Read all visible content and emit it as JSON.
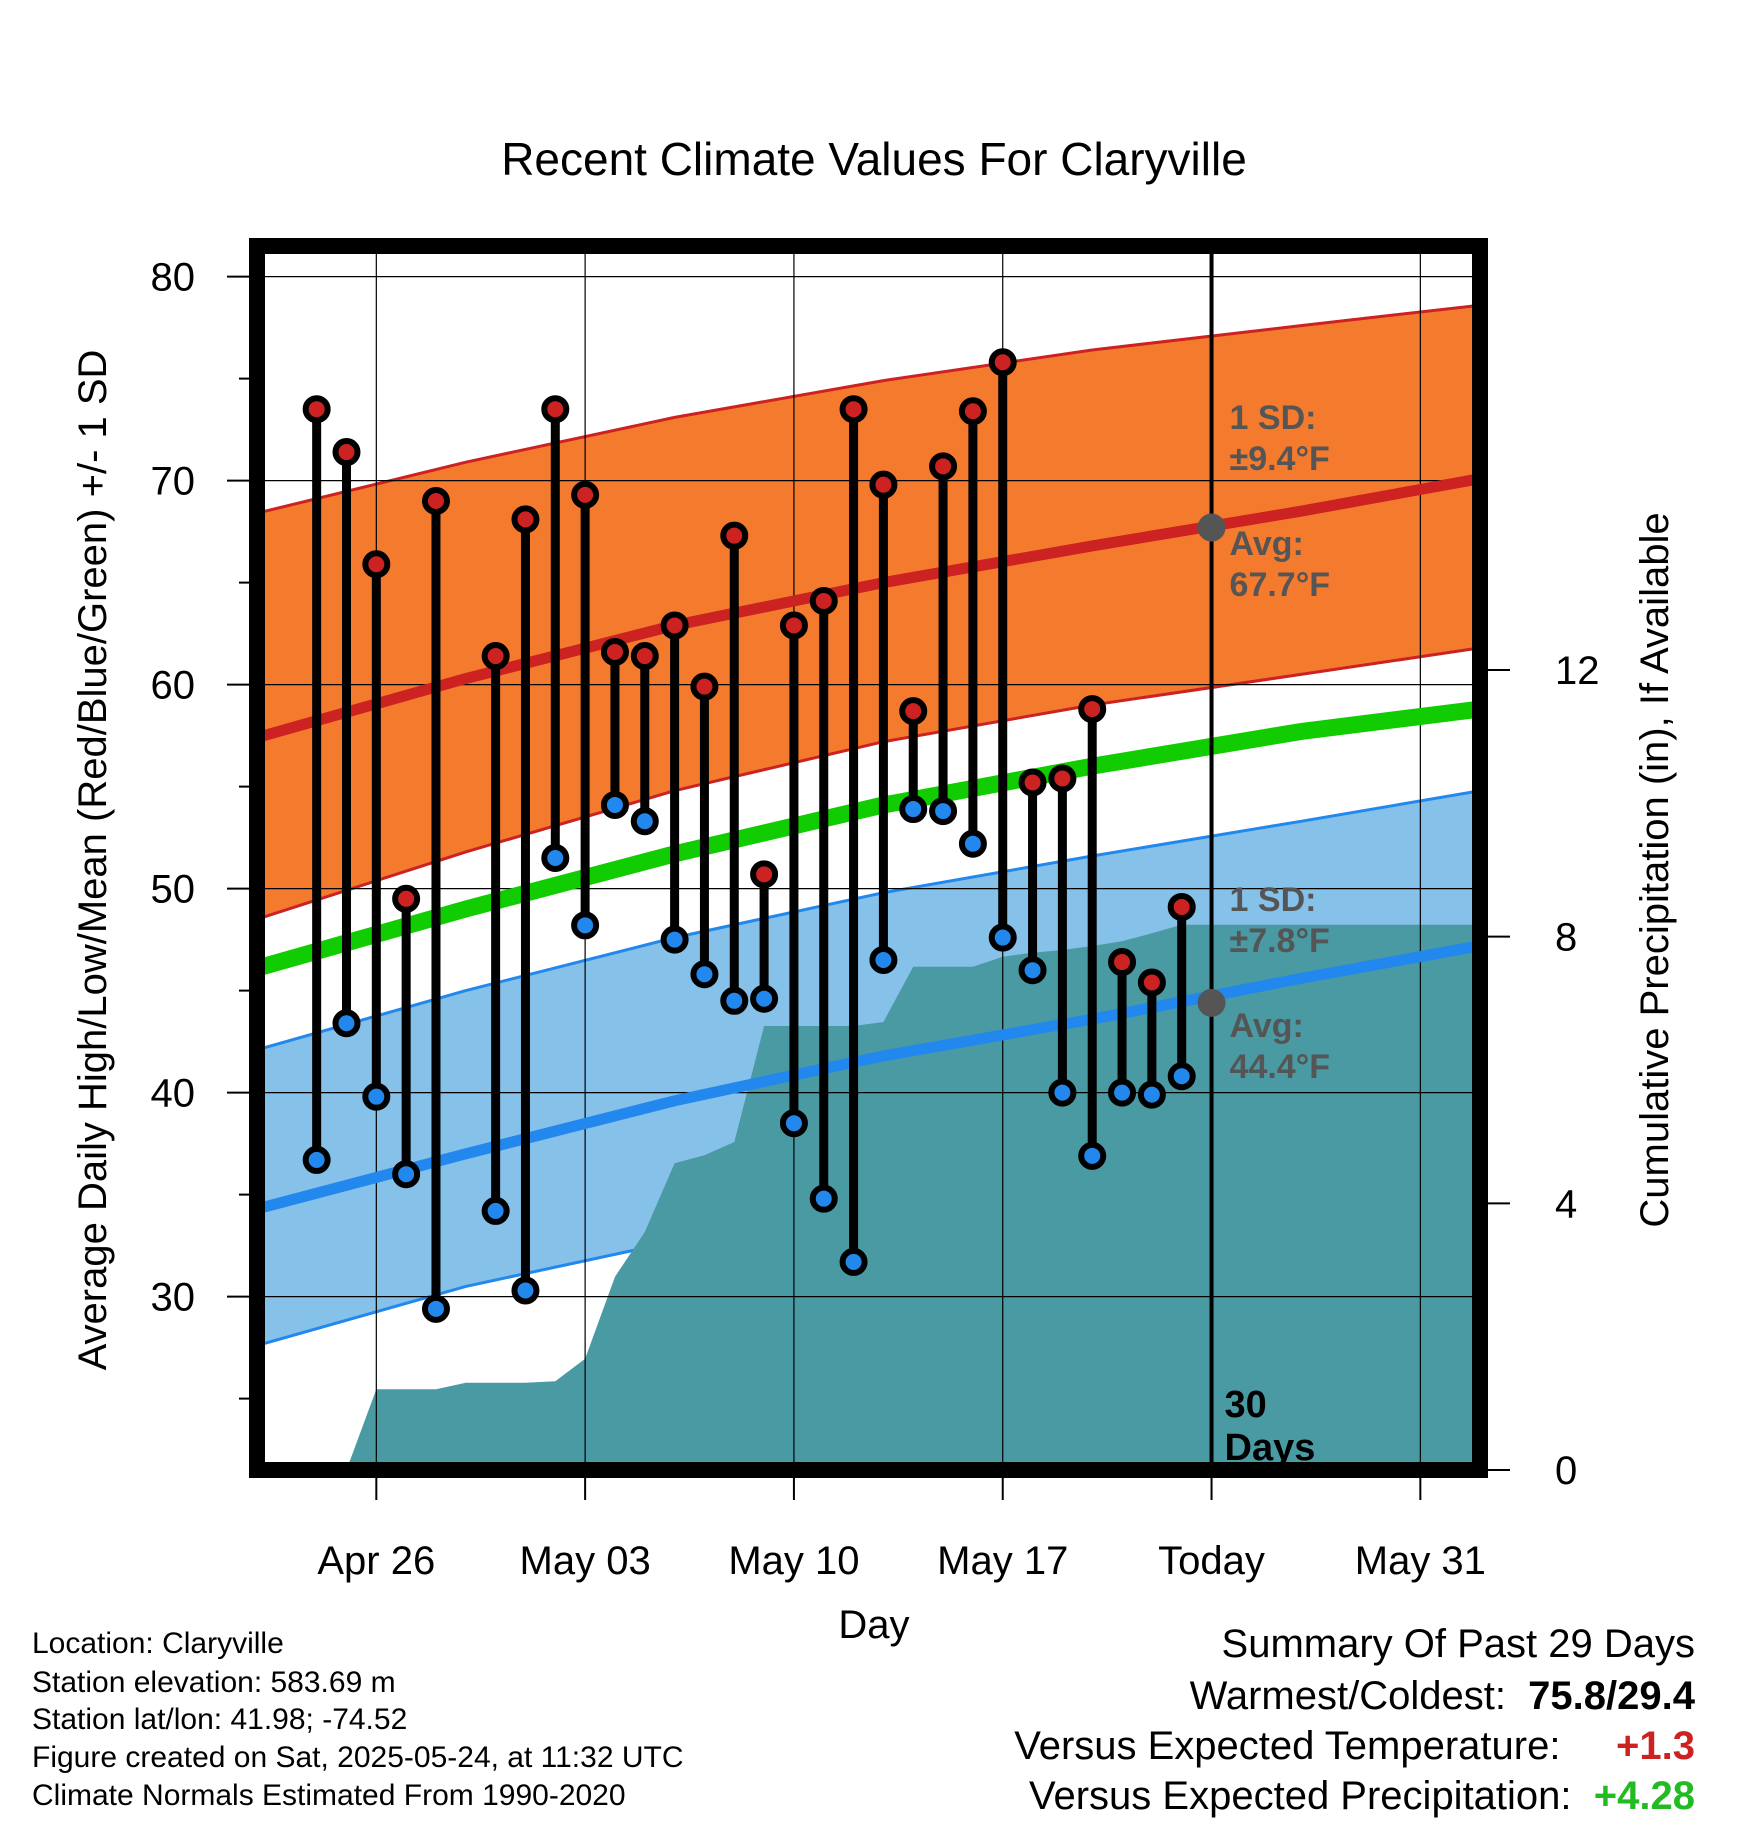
{
  "chart_data": {
    "type": "line",
    "title": "Recent Climate Values For Claryville",
    "xlabel": "Day",
    "ylabel": "Average Daily High/Low/Mean (Red/Blue/Green) +/- 1 SD",
    "y2label": "Cumulative Precipitation (in), If Available",
    "x_tick_labels": [
      "Apr 26",
      "May 03",
      "May 10",
      "May 17",
      "Today",
      "May 31"
    ],
    "x_tick_dates": [
      "2025-04-26",
      "2025-05-03",
      "2025-05-10",
      "2025-05-17",
      "2025-05-24",
      "2025-05-31"
    ],
    "xlim": [
      "2025-04-22",
      "2025-06-02"
    ],
    "ylim": [
      21.5,
      81.5
    ],
    "y_ticks": [
      30,
      40,
      50,
      60,
      70,
      80
    ],
    "y2lim": [
      0,
      18.36
    ],
    "y2_ticks": [
      0,
      4,
      8,
      12
    ],
    "today_label": "30\nDays",
    "today_date": "2025-05-24",
    "normals": {
      "dates": [
        "2025-04-22",
        "2025-04-29",
        "2025-05-06",
        "2025-05-13",
        "2025-05-20",
        "2025-05-27",
        "2025-06-02"
      ],
      "avg_high": [
        57.4,
        60.3,
        62.9,
        65.0,
        66.8,
        68.5,
        70.1
      ],
      "avg_high_upper": [
        68.4,
        70.9,
        73.1,
        74.9,
        76.4,
        77.6,
        78.6
      ],
      "avg_high_lower": [
        48.5,
        51.8,
        54.8,
        57.2,
        59.0,
        60.5,
        61.8
      ],
      "avg_mean": [
        46.1,
        49.0,
        51.7,
        54.1,
        56.0,
        57.7,
        58.8
      ],
      "avg_low": [
        34.3,
        37.0,
        39.6,
        41.8,
        43.6,
        45.6,
        47.2
      ],
      "avg_low_upper": [
        42.1,
        45.0,
        47.6,
        49.8,
        51.6,
        53.3,
        54.8
      ],
      "avg_low_lower": [
        27.6,
        30.5,
        32.7,
        34.8,
        36.6,
        38.3,
        39.7
      ]
    },
    "today_annotations": {
      "high_sd": "1 SD:",
      "high_sd_val": "±9.4°F",
      "high_avg": "Avg:",
      "high_avg_val": "67.7°F",
      "high_avg_value": 67.7,
      "low_sd": "1 SD:",
      "low_sd_val": "±7.8°F",
      "low_avg": "Avg:",
      "low_avg_val": "44.4°F",
      "low_avg_value": 44.4
    },
    "series": [
      {
        "name": "Daily High",
        "color": "#cc2222",
        "dates": [
          "2025-04-24",
          "2025-04-25",
          "2025-04-26",
          "2025-04-27",
          "2025-04-28",
          "2025-04-30",
          "2025-05-01",
          "2025-05-02",
          "2025-05-03",
          "2025-05-04",
          "2025-05-05",
          "2025-05-06",
          "2025-05-07",
          "2025-05-08",
          "2025-05-09",
          "2025-05-10",
          "2025-05-11",
          "2025-05-12",
          "2025-05-13",
          "2025-05-14",
          "2025-05-15",
          "2025-05-16",
          "2025-05-17",
          "2025-05-18",
          "2025-05-19",
          "2025-05-20",
          "2025-05-21",
          "2025-05-22",
          "2025-05-23"
        ],
        "values": [
          73.5,
          71.4,
          65.9,
          49.5,
          69.0,
          61.4,
          68.1,
          73.5,
          69.3,
          61.6,
          61.4,
          62.9,
          59.9,
          67.3,
          50.7,
          62.9,
          64.1,
          73.5,
          69.8,
          58.7,
          70.7,
          73.4,
          75.8,
          55.2,
          55.4,
          58.8,
          46.4,
          45.4,
          49.1
        ]
      },
      {
        "name": "Daily Low",
        "color": "#2288ee",
        "dates": [
          "2025-04-24",
          "2025-04-25",
          "2025-04-26",
          "2025-04-27",
          "2025-04-28",
          "2025-04-30",
          "2025-05-01",
          "2025-05-02",
          "2025-05-03",
          "2025-05-04",
          "2025-05-05",
          "2025-05-06",
          "2025-05-07",
          "2025-05-08",
          "2025-05-09",
          "2025-05-10",
          "2025-05-11",
          "2025-05-12",
          "2025-05-13",
          "2025-05-14",
          "2025-05-15",
          "2025-05-16",
          "2025-05-17",
          "2025-05-18",
          "2025-05-19",
          "2025-05-20",
          "2025-05-21",
          "2025-05-22",
          "2025-05-23"
        ],
        "values": [
          36.7,
          43.4,
          39.8,
          36.0,
          29.4,
          34.2,
          30.3,
          51.5,
          48.2,
          54.1,
          53.3,
          47.5,
          45.8,
          44.5,
          44.6,
          38.5,
          34.8,
          31.7,
          46.5,
          53.9,
          53.8,
          52.2,
          47.6,
          46.0,
          40.0,
          36.9,
          40.0,
          39.9,
          40.8
        ]
      },
      {
        "name": "Cumulative Precipitation",
        "color": "#4a9aa4",
        "dates": [
          "2025-04-22",
          "2025-04-23",
          "2025-04-24",
          "2025-04-25",
          "2025-04-26",
          "2025-04-27",
          "2025-04-28",
          "2025-04-29",
          "2025-04-30",
          "2025-05-01",
          "2025-05-02",
          "2025-05-03",
          "2025-05-04",
          "2025-05-05",
          "2025-05-06",
          "2025-05-07",
          "2025-05-08",
          "2025-05-09",
          "2025-05-10",
          "2025-05-11",
          "2025-05-12",
          "2025-05-13",
          "2025-05-14",
          "2025-05-15",
          "2025-05-16",
          "2025-05-17",
          "2025-05-18",
          "2025-05-19",
          "2025-05-20",
          "2025-05-21",
          "2025-05-22",
          "2025-05-23",
          "2025-06-02"
        ],
        "values": [
          0,
          0,
          0,
          0,
          1.21,
          1.21,
          1.21,
          1.31,
          1.31,
          1.31,
          1.33,
          1.67,
          2.9,
          3.57,
          4.6,
          4.72,
          4.92,
          6.66,
          6.66,
          6.66,
          6.66,
          6.72,
          7.55,
          7.55,
          7.55,
          7.7,
          7.76,
          7.8,
          7.86,
          7.93,
          8.05,
          8.18,
          8.18
        ]
      }
    ]
  },
  "info": {
    "location": "Location: Claryville",
    "elevation": "Station elevation: 583.69 m",
    "latlon": "Station lat/lon: 41.98; -74.52",
    "created": "Figure created on Sat, 2025-05-24, at 11:32 UTC",
    "normals": "Climate Normals Estimated From 1990-2020"
  },
  "summary": {
    "heading": "Summary Of Past 29 Days",
    "warmest_label": "Warmest/Coldest:",
    "warmest_value": "75.8/29.4",
    "temp_label": "Versus Expected Temperature:",
    "temp_value": "+1.3",
    "temp_color": "#cc2222",
    "precip_label": "Versus Expected Precipitation:",
    "precip_value": "+4.28",
    "precip_color": "#22bb22"
  },
  "colors": {
    "high_band": "#f47a2e",
    "high_line": "#cc2222",
    "mean_line": "#11cc00",
    "low_band": "#85c1e8",
    "low_line": "#2288ee",
    "precip": "#4a9aa4",
    "annotation": "#555555"
  }
}
